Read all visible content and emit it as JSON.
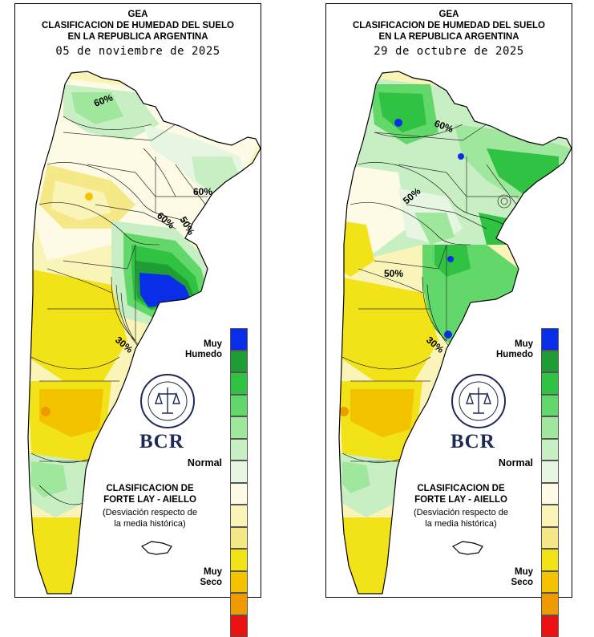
{
  "panels": [
    {
      "org": "GEA",
      "title_line1": "CLASIFICACION DE HUMEDAD DEL SUELO",
      "title_line2": "EN LA REPUBLICA ARGENTINA",
      "date": "05 de noviembre de 2025",
      "isolines": [
        "60%",
        "60%",
        "50%",
        "60%",
        "30%"
      ]
    },
    {
      "org": "GEA",
      "title_line1": "CLASIFICACION DE HUMEDAD DEL SUELO",
      "title_line2": "EN LA REPUBLICA ARGENTINA",
      "date": "29 de octubre de 2025",
      "isolines": [
        "60%",
        "50%",
        "50%",
        "30%"
      ]
    }
  ],
  "legend": {
    "top_label_1": "Muy",
    "top_label_2": "Humedo",
    "mid_label": "Normal",
    "bottom_label_1": "Muy",
    "bottom_label_2": "Seco",
    "colors": [
      "#0a2ee8",
      "#1f9e35",
      "#30c243",
      "#63d86a",
      "#9ee79c",
      "#c8efc4",
      "#e6f6e2",
      "#fdfbe6",
      "#fbf4b8",
      "#f4e887",
      "#f2e218",
      "#f3c300",
      "#ef9a00",
      "#ec1111"
    ]
  },
  "brand": {
    "name": "BCR",
    "seal_text": "BOLSA DE COMERCIO DE ROSARIO"
  },
  "method": {
    "line1": "CLASIFICACION DE",
    "line2": "FORTE LAY - AIELLO",
    "line3": "(Desviación respecto de",
    "line4": "la media histórica)"
  }
}
